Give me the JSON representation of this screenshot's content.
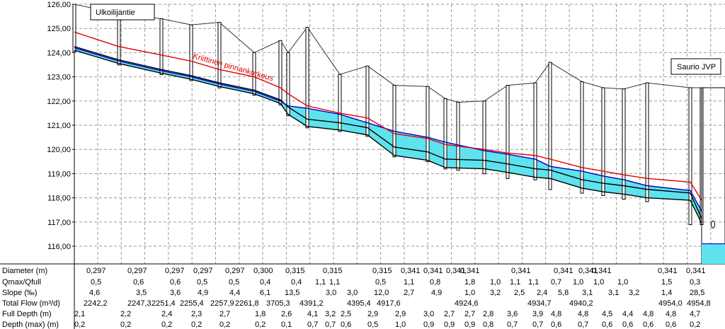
{
  "chart_data": {
    "type": "line",
    "y_ticks": [
      "126,00",
      "125,00",
      "124,00",
      "123,00",
      "122,00",
      "121,00",
      "120,00",
      "119,00",
      "118,00",
      "117,00",
      "116,00"
    ],
    "ylim": [
      115.3,
      126.0
    ],
    "start_label": "Ulkoilijantie",
    "end_label": "Saurio JVP",
    "critical_label": "Kriittinen pinnankorkeus",
    "manholes": [
      {
        "x": 105,
        "ground": 126.0
      },
      {
        "x": 168,
        "ground": 125.6
      },
      {
        "x": 228,
        "ground": 125.4
      },
      {
        "x": 270,
        "ground": 125.15
      },
      {
        "x": 310,
        "ground": 125.25
      },
      {
        "x": 359,
        "ground": 124.0
      },
      {
        "x": 396,
        "ground": 124.5
      },
      {
        "x": 407,
        "ground": 124.0
      },
      {
        "x": 434,
        "ground": 125.05
      },
      {
        "x": 480,
        "ground": 123.1
      },
      {
        "x": 519,
        "ground": 123.45
      },
      {
        "x": 557,
        "ground": 122.65
      },
      {
        "x": 604,
        "ground": 122.6
      },
      {
        "x": 629,
        "ground": 122.1
      },
      {
        "x": 647,
        "ground": 121.95
      },
      {
        "x": 684,
        "ground": 122.0
      },
      {
        "x": 717,
        "ground": 122.65
      },
      {
        "x": 756,
        "ground": 122.75
      },
      {
        "x": 777,
        "ground": 123.6
      },
      {
        "x": 822,
        "ground": 122.8
      },
      {
        "x": 852,
        "ground": 122.55
      },
      {
        "x": 881,
        "ground": 122.5
      },
      {
        "x": 914,
        "ground": 122.75
      },
      {
        "x": 975,
        "ground": 122.55
      },
      {
        "x": 991,
        "ground": 122.55
      }
    ],
    "series": [
      {
        "color": "#000000",
        "points": [
          [
            105,
            124.1
          ],
          [
            168,
            123.55
          ],
          [
            228,
            123.15
          ],
          [
            270,
            122.9
          ],
          [
            310,
            122.6
          ],
          [
            359,
            122.3
          ],
          [
            396,
            121.9
          ],
          [
            407,
            121.45
          ],
          [
            434,
            120.95
          ],
          [
            480,
            120.8
          ],
          [
            519,
            120.6
          ],
          [
            557,
            119.75
          ],
          [
            604,
            119.55
          ],
          [
            629,
            119.25
          ],
          [
            684,
            119.2
          ],
          [
            717,
            119.05
          ],
          [
            756,
            118.85
          ],
          [
            777,
            118.8
          ],
          [
            822,
            118.4
          ],
          [
            852,
            118.25
          ],
          [
            881,
            118.15
          ],
          [
            914,
            118.0
          ],
          [
            975,
            117.9
          ],
          [
            991,
            116.95
          ]
        ]
      },
      {
        "color": "#000000",
        "points": [
          [
            105,
            124.25
          ],
          [
            168,
            123.7
          ],
          [
            228,
            123.3
          ],
          [
            270,
            123.05
          ],
          [
            310,
            122.75
          ],
          [
            359,
            122.45
          ],
          [
            396,
            122.05
          ],
          [
            407,
            121.75
          ],
          [
            434,
            121.25
          ],
          [
            480,
            121.1
          ],
          [
            519,
            120.9
          ],
          [
            557,
            120.1
          ],
          [
            604,
            119.9
          ],
          [
            629,
            119.6
          ],
          [
            684,
            119.55
          ],
          [
            717,
            119.4
          ],
          [
            756,
            119.2
          ],
          [
            777,
            119.15
          ],
          [
            822,
            118.75
          ],
          [
            852,
            118.6
          ],
          [
            881,
            118.5
          ],
          [
            914,
            118.35
          ],
          [
            975,
            118.2
          ],
          [
            991,
            117.15
          ]
        ]
      },
      {
        "color": "#0000cc",
        "points": [
          [
            105,
            124.2
          ],
          [
            168,
            123.65
          ],
          [
            228,
            123.25
          ],
          [
            270,
            123.0
          ],
          [
            310,
            122.7
          ],
          [
            359,
            122.4
          ],
          [
            396,
            122.0
          ],
          [
            407,
            121.8
          ],
          [
            434,
            121.7
          ],
          [
            480,
            121.45
          ],
          [
            519,
            121.1
          ],
          [
            557,
            120.75
          ],
          [
            604,
            120.5
          ],
          [
            629,
            120.3
          ],
          [
            684,
            119.95
          ],
          [
            717,
            119.8
          ],
          [
            756,
            119.6
          ],
          [
            777,
            119.3
          ],
          [
            822,
            119.1
          ],
          [
            852,
            118.9
          ],
          [
            881,
            118.75
          ],
          [
            914,
            118.5
          ],
          [
            975,
            118.3
          ],
          [
            991,
            117.45
          ]
        ]
      },
      {
        "color": "#e00000",
        "points": [
          [
            105,
            124.85
          ],
          [
            168,
            124.25
          ],
          [
            228,
            123.9
          ],
          [
            270,
            123.65
          ],
          [
            310,
            123.3
          ],
          [
            359,
            123.0
          ],
          [
            396,
            122.55
          ],
          [
            407,
            122.3
          ],
          [
            434,
            121.8
          ],
          [
            480,
            121.5
          ],
          [
            519,
            121.3
          ],
          [
            557,
            120.65
          ],
          [
            604,
            120.45
          ],
          [
            629,
            120.2
          ],
          [
            684,
            120.0
          ],
          [
            717,
            119.85
          ],
          [
            756,
            119.75
          ],
          [
            777,
            119.6
          ],
          [
            822,
            119.25
          ],
          [
            852,
            119.1
          ],
          [
            881,
            118.95
          ],
          [
            914,
            118.8
          ],
          [
            975,
            118.65
          ],
          [
            991,
            117.9
          ]
        ]
      }
    ],
    "table": {
      "rows": [
        {
          "label": "Diameter (m)",
          "values": [
            [
              122,
              "0,297"
            ],
            [
              180,
              "0,297"
            ],
            [
              233,
              "0,297"
            ],
            [
              273,
              "0,297"
            ],
            [
              318,
              "0,297"
            ],
            [
              358,
              "0,300"
            ],
            [
              403,
              "0,315"
            ],
            [
              456,
              "0,315"
            ],
            [
              526,
              "0,315"
            ],
            [
              566,
              "0,341"
            ],
            [
              598,
              "0,341"
            ],
            [
              630,
              "0,341"
            ],
            [
              650,
              "0,341"
            ],
            [
              722,
              "0,341"
            ],
            [
              782,
              "0,341"
            ],
            [
              817,
              "0,341"
            ],
            [
              836,
              "0,341"
            ],
            [
              929,
              "0,341"
            ],
            [
              969,
              "0,341"
            ]
          ]
        },
        {
          "label": "Qmax/Qfull",
          "values": [
            [
              128,
              "0,5"
            ],
            [
              188,
              "0,6"
            ],
            [
              240,
              "0,6"
            ],
            [
              278,
              "0,5"
            ],
            [
              323,
              "0,5"
            ],
            [
              367,
              "0,4"
            ],
            [
              411,
              "0,4"
            ],
            [
              445,
              "1,1"
            ],
            [
              465,
              "1,1"
            ],
            [
              530,
              "0,5"
            ],
            [
              570,
              "1,1"
            ],
            [
              607,
              "0,8"
            ],
            [
              656,
              "1,8"
            ],
            [
              692,
              "1,0"
            ],
            [
              720,
              "1,1"
            ],
            [
              746,
              "1,1"
            ],
            [
              778,
              "0,7"
            ],
            [
              809,
              "1,0"
            ],
            [
              838,
              "1,0"
            ],
            [
              872,
              "1,0"
            ],
            [
              934,
              "1,5"
            ],
            [
              974,
              "0,3"
            ]
          ]
        },
        {
          "label": "Slope (‰)",
          "values": [
            [
              126,
              "4,6"
            ],
            [
              192,
              "3,5"
            ],
            [
              240,
              "3,6"
            ],
            [
              279,
              "4,9"
            ],
            [
              324,
              "4,4"
            ],
            [
              367,
              "6,1"
            ],
            [
              402,
              "13,5"
            ],
            [
              460,
              "3,0"
            ],
            [
              490,
              "3,0"
            ],
            [
              528,
              "12,0"
            ],
            [
              570,
              "2,7"
            ],
            [
              609,
              "4,9"
            ],
            [
              656,
              "1,0"
            ],
            [
              692,
              "3,2"
            ],
            [
              726,
              "2,5"
            ],
            [
              758,
              "2,4"
            ],
            [
              788,
              "5,8"
            ],
            [
              822,
              "3,1"
            ],
            [
              859,
              "3,1"
            ],
            [
              888,
              "3,2"
            ],
            [
              934,
              "1,4"
            ],
            [
              974,
              "28,5"
            ]
          ]
        },
        {
          "label": "Total Flow (m³/d)",
          "values": [
            [
              118,
              "2242,2"
            ],
            [
              180,
              "2247,3"
            ],
            [
              214,
              "2251,4"
            ],
            [
              254,
              "2255,4"
            ],
            [
              297,
              "2257,9"
            ],
            [
              332,
              "2261,8"
            ],
            [
              376,
              "3705,3"
            ],
            [
              423,
              "4391,2"
            ],
            [
              490,
              "4395,4"
            ],
            [
              532,
              "4917,6"
            ],
            [
              642,
              "4924,6"
            ],
            [
              745,
              "4934,7"
            ],
            [
              804,
              "4940,2"
            ],
            [
              930,
              "4954,0"
            ],
            [
              970,
              "4954,8"
            ]
          ]
        },
        {
          "label": "Full Depth (m)",
          "values": [
            [
              105,
              "2,1"
            ],
            [
              170,
              "2,2"
            ],
            [
              228,
              "2,4"
            ],
            [
              270,
              "2,3"
            ],
            [
              310,
              "2,7"
            ],
            [
              360,
              "1,8"
            ],
            [
              397,
              "2,6"
            ],
            [
              434,
              "4,1"
            ],
            [
              459,
              "3,2"
            ],
            [
              481,
              "2,5"
            ],
            [
              519,
              "2,9"
            ],
            [
              558,
              "2,9"
            ],
            [
              598,
              "3,0"
            ],
            [
              627,
              "2,7"
            ],
            [
              656,
              "2,7"
            ],
            [
              682,
              "2,8"
            ],
            [
              716,
              "3,6"
            ],
            [
              752,
              "3,9"
            ],
            [
              778,
              "4,8"
            ],
            [
              816,
              "4,8"
            ],
            [
              850,
              "4,5"
            ],
            [
              879,
              "4,4"
            ],
            [
              908,
              "4,8"
            ],
            [
              940,
              "4,8"
            ],
            [
              974,
              "4,7"
            ]
          ]
        },
        {
          "label": "Depth (max) (m)",
          "values": [
            [
              105,
              "0,2"
            ],
            [
              170,
              "0,2"
            ],
            [
              228,
              "0,2"
            ],
            [
              270,
              "0,2"
            ],
            [
              310,
              "0,2"
            ],
            [
              360,
              "0,2"
            ],
            [
              397,
              "0,1"
            ],
            [
              434,
              "0,7"
            ],
            [
              459,
              "0,7"
            ],
            [
              481,
              "0,6"
            ],
            [
              519,
              "0,5"
            ],
            [
              558,
              "1,0"
            ],
            [
              598,
              "0,9"
            ],
            [
              627,
              "0,9"
            ],
            [
              656,
              "0,9"
            ],
            [
              682,
              "0,8"
            ],
            [
              716,
              "0,7"
            ],
            [
              752,
              "0,7"
            ],
            [
              778,
              "0,6"
            ],
            [
              816,
              "0,7"
            ],
            [
              850,
              "0,6"
            ],
            [
              879,
              "0,6"
            ],
            [
              908,
              "0,6"
            ],
            [
              940,
              "0,6"
            ],
            [
              974,
              "0,2"
            ]
          ]
        }
      ]
    }
  }
}
